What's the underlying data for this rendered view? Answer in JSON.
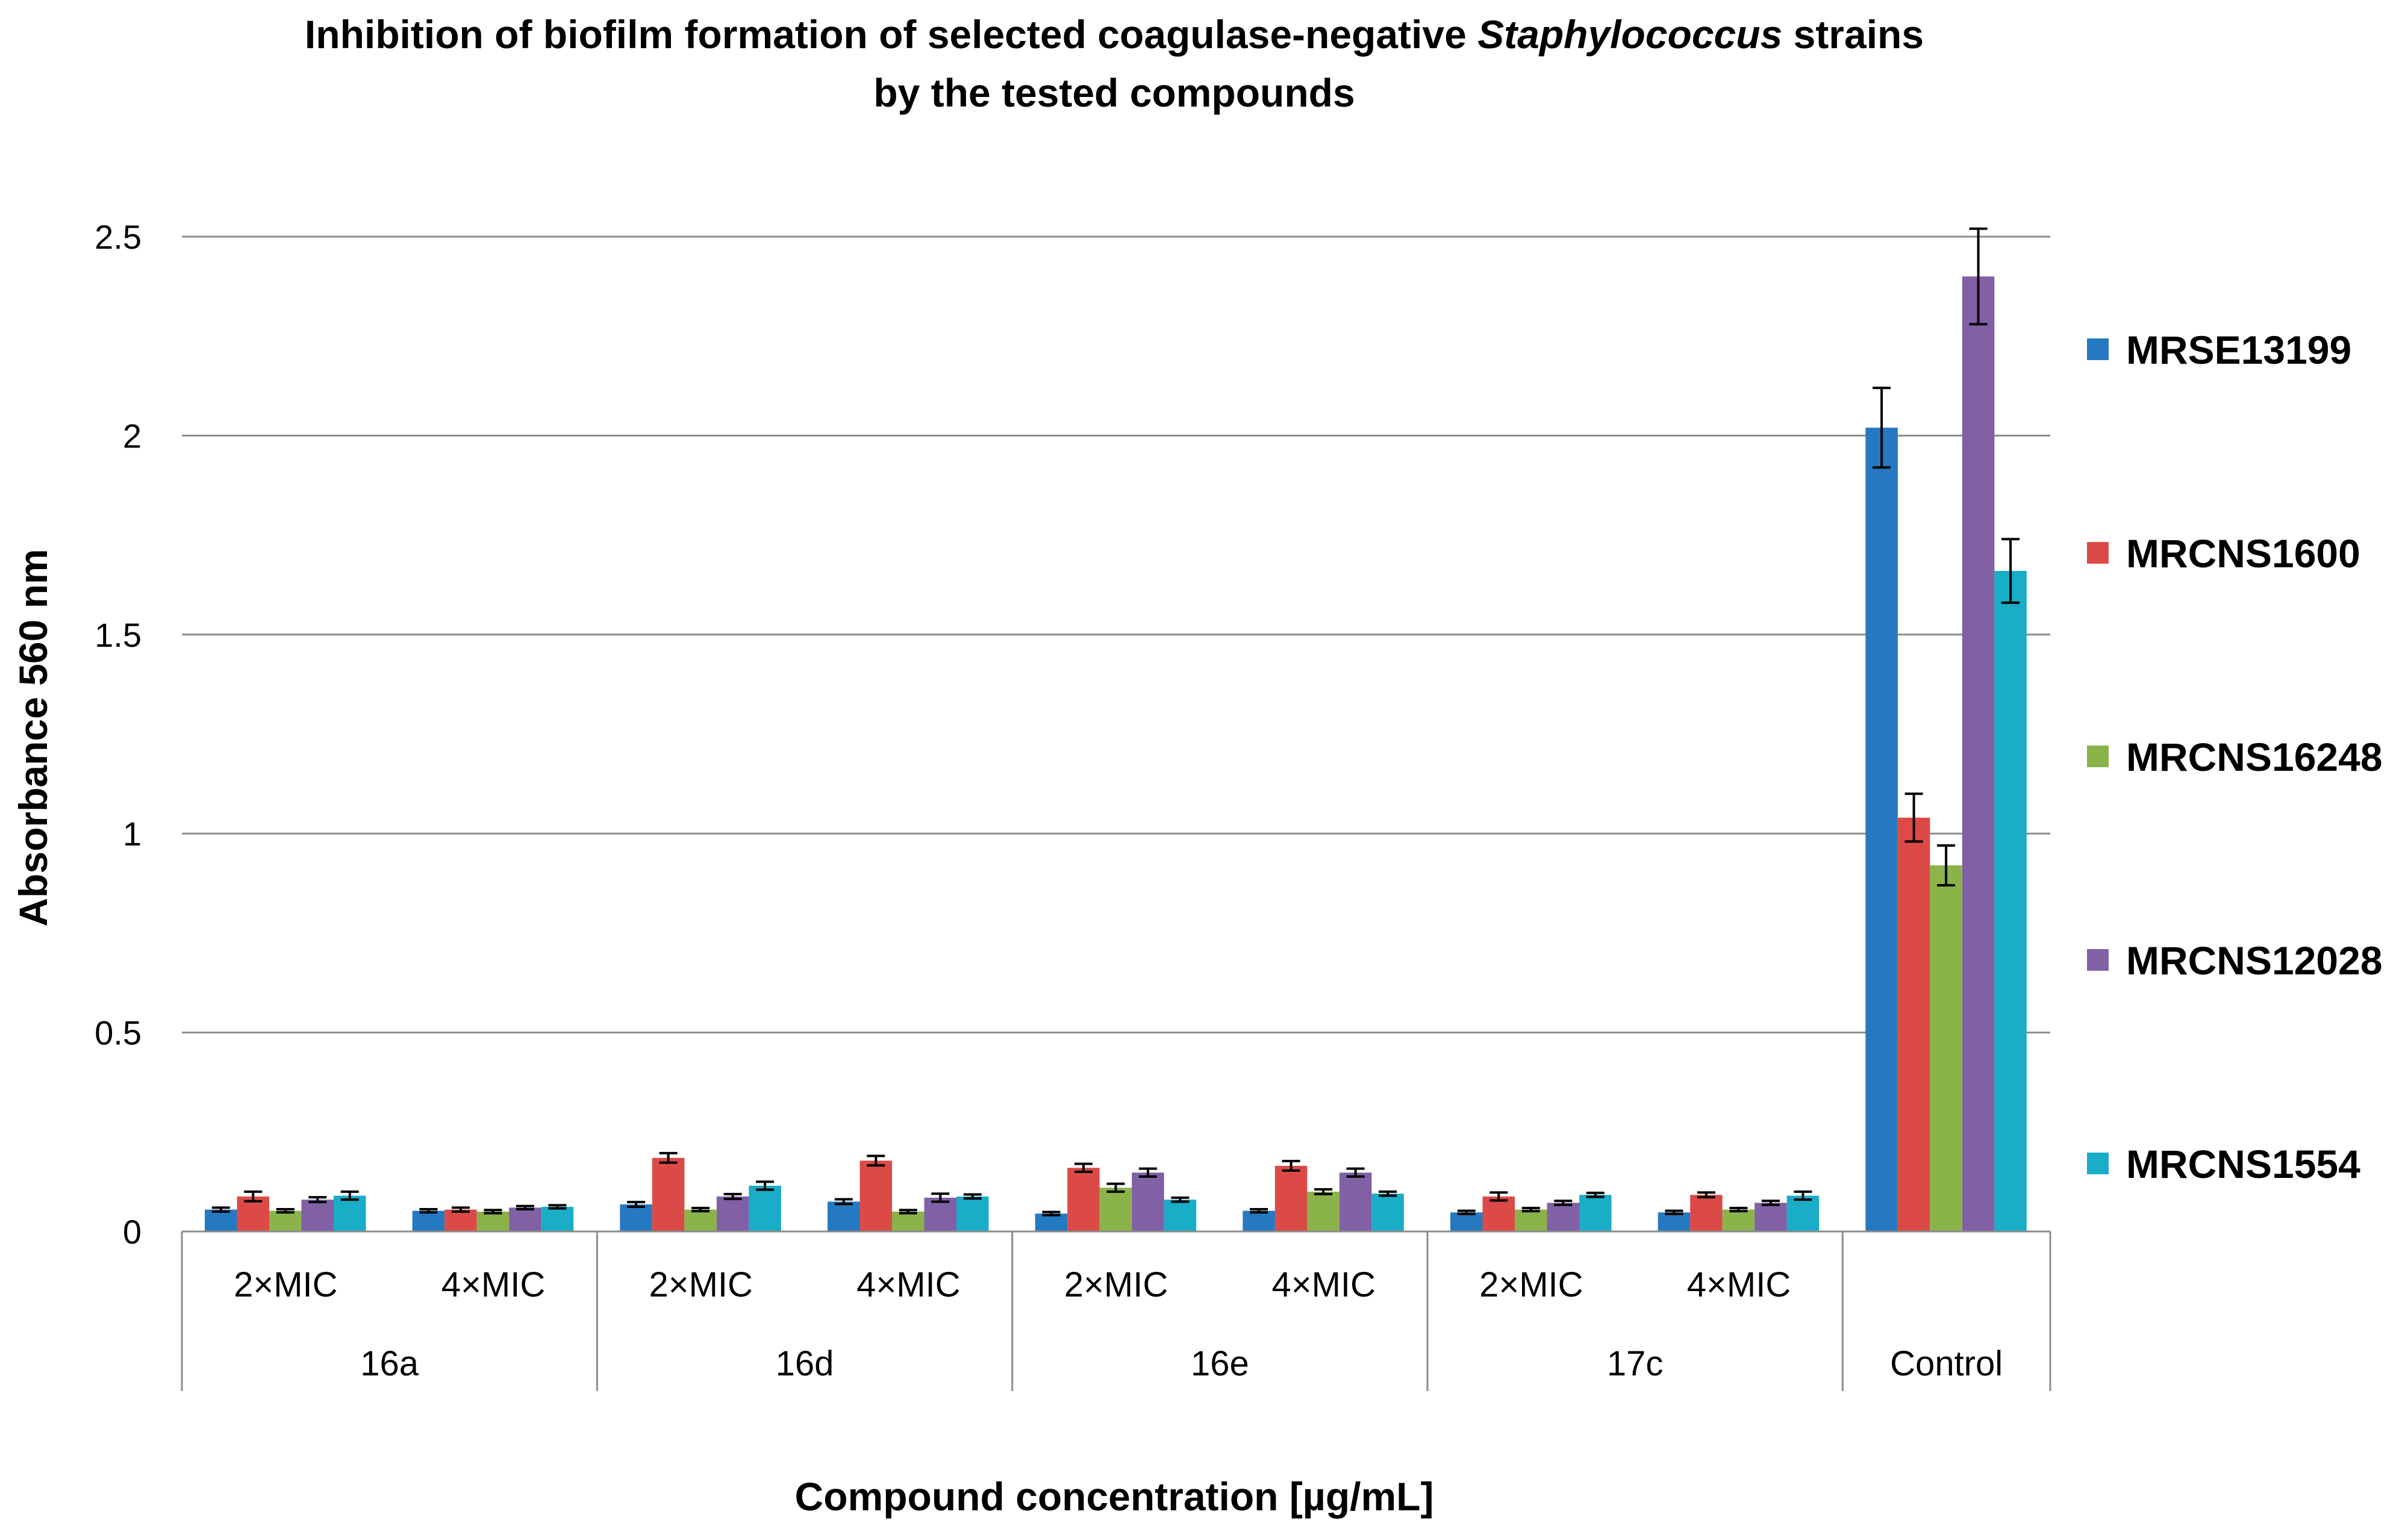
{
  "chart_data": {
    "type": "bar",
    "title_line1_pre": "Inhibition of biofilm formation of selected coagulase-negative ",
    "title_line1_italic": "Staphylococcus",
    "title_line1_post": " strains",
    "title_line2": "by the tested compounds",
    "xlabel": "Compound concentration [µg/mL]",
    "ylabel": "Absorbance 560 nm",
    "ylim": [
      0,
      2.5
    ],
    "yticks": [
      "0",
      "0.5",
      "1",
      "1.5",
      "2",
      "2.5"
    ],
    "ytick_values": [
      0,
      0.5,
      1,
      1.5,
      2,
      2.5
    ],
    "grid": true,
    "legend_position": "right",
    "groups": [
      {
        "label": "16a",
        "subs": [
          "2×MIC",
          "4×MIC"
        ]
      },
      {
        "label": "16d",
        "subs": [
          "2×MIC",
          "4×MIC"
        ]
      },
      {
        "label": "16e",
        "subs": [
          "2×MIC",
          "4×MIC"
        ]
      },
      {
        "label": "17c",
        "subs": [
          "2×MIC",
          "4×MIC"
        ]
      },
      {
        "label": "Control",
        "subs": [
          ""
        ]
      }
    ],
    "series": [
      {
        "name": "MRSE13199",
        "color": "#2579C1",
        "values": [
          0.055,
          0.052,
          0.068,
          0.075,
          0.045,
          0.052,
          0.048,
          0.048,
          2.02
        ],
        "errors": [
          0.005,
          0.004,
          0.006,
          0.006,
          0.004,
          0.004,
          0.004,
          0.004,
          0.1
        ]
      },
      {
        "name": "MRCNS1600",
        "color": "#DC4A47",
        "values": [
          0.088,
          0.055,
          0.185,
          0.178,
          0.16,
          0.165,
          0.088,
          0.092,
          1.04
        ],
        "errors": [
          0.012,
          0.005,
          0.012,
          0.012,
          0.01,
          0.012,
          0.01,
          0.006,
          0.06
        ]
      },
      {
        "name": "MRCNS16248",
        "color": "#8AB34A",
        "values": [
          0.052,
          0.05,
          0.055,
          0.05,
          0.11,
          0.1,
          0.055,
          0.055,
          0.92
        ],
        "errors": [
          0.004,
          0.004,
          0.004,
          0.004,
          0.01,
          0.006,
          0.004,
          0.004,
          0.05
        ]
      },
      {
        "name": "MRCNS12028",
        "color": "#8160A6",
        "values": [
          0.08,
          0.06,
          0.088,
          0.085,
          0.148,
          0.148,
          0.072,
          0.072,
          2.4
        ],
        "errors": [
          0.006,
          0.004,
          0.006,
          0.01,
          0.01,
          0.01,
          0.005,
          0.005,
          0.12
        ]
      },
      {
        "name": "MRCNS1554",
        "color": "#19ADC7",
        "values": [
          0.09,
          0.062,
          0.115,
          0.088,
          0.08,
          0.095,
          0.092,
          0.09,
          1.66
        ],
        "errors": [
          0.01,
          0.004,
          0.01,
          0.005,
          0.005,
          0.005,
          0.005,
          0.01,
          0.08
        ]
      }
    ]
  }
}
